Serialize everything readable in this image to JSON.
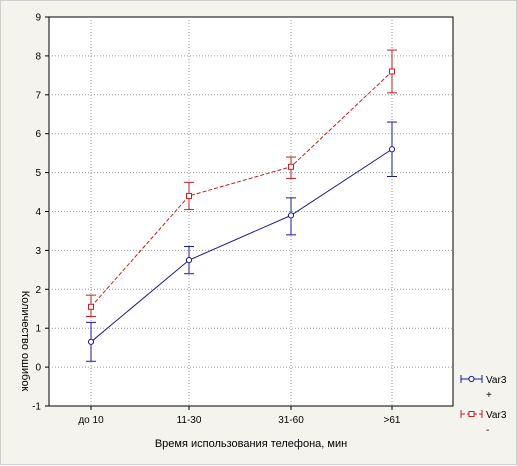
{
  "chart_data": {
    "type": "line",
    "title": "",
    "xlabel": "Время использования телефона, мин",
    "ylabel": "Количество ошибок",
    "categories": [
      "до 10",
      "11-30",
      "31-60",
      ">61"
    ],
    "ylim": [
      -1,
      9
    ],
    "yticks": [
      -1,
      0,
      1,
      2,
      3,
      4,
      5,
      6,
      7,
      8,
      9
    ],
    "grid": true,
    "legend_position": "bottom-right",
    "series": [
      {
        "name": "Var3 +",
        "legend_line1": "Var3",
        "legend_line2": "+",
        "color": "#1a1aa0",
        "line_style": "solid",
        "marker": "circle",
        "values": [
          0.65,
          2.75,
          3.9,
          5.6
        ],
        "error_low": [
          0.15,
          2.4,
          3.4,
          4.9
        ],
        "error_high": [
          1.15,
          3.1,
          4.35,
          6.3
        ]
      },
      {
        "name": "Var3 -",
        "legend_line1": "Var3",
        "legend_line2": "-",
        "color": "#c41e1e",
        "line_style": "dashed",
        "marker": "square",
        "values": [
          1.55,
          4.4,
          5.15,
          7.6
        ],
        "error_low": [
          1.3,
          4.05,
          4.85,
          7.05
        ],
        "error_high": [
          1.85,
          4.75,
          5.4,
          8.15
        ]
      }
    ]
  }
}
